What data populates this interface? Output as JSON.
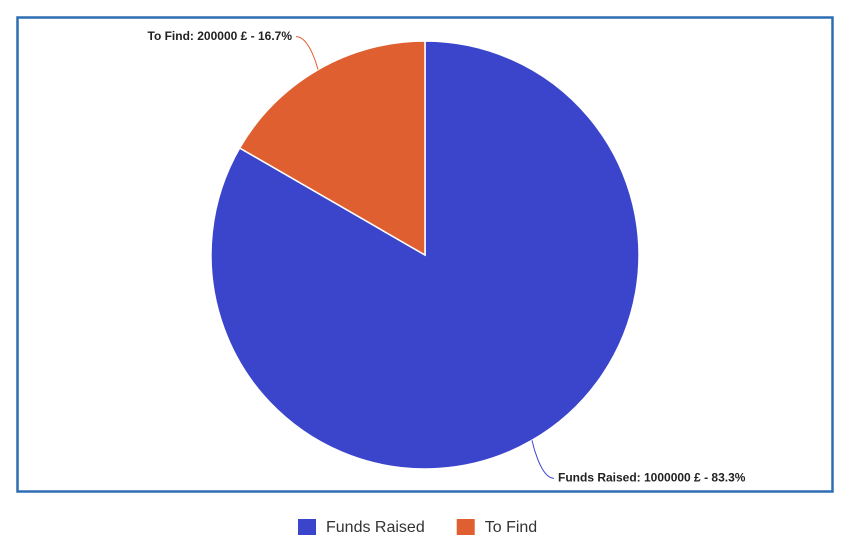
{
  "chart_data": {
    "type": "pie",
    "categories": [
      "Funds Raised",
      "To Find"
    ],
    "values": [
      1000000,
      200000
    ],
    "value_labels": [
      "Funds Raised: 1000000 £ - 83.3%",
      "To Find: 200000 £ - 16.7%"
    ],
    "colors": [
      "#3b45cc",
      "#e05f31"
    ],
    "legend": "bottom"
  }
}
